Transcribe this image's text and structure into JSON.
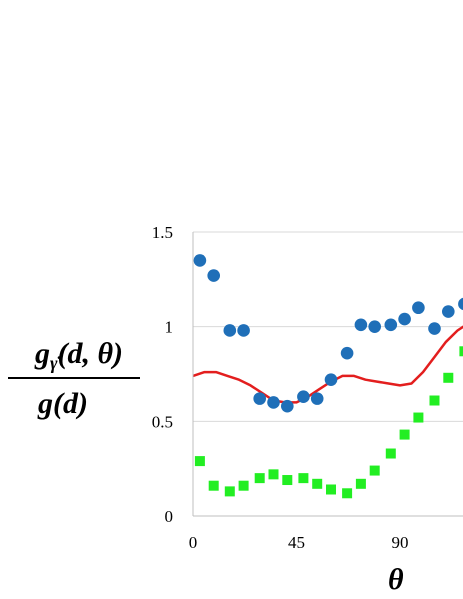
{
  "chart_data": {
    "type": "scatter",
    "title": "",
    "ylabel_numerator": "g",
    "ylabel_numerator_sub": "γ̇",
    "ylabel_numerator_args": "(d, θ)",
    "ylabel_denominator": "g(d)",
    "xlabel": "θ",
    "xlim": [
      0,
      125
    ],
    "ylim": [
      0,
      1.5
    ],
    "x_ticks": [
      0,
      45,
      90
    ],
    "x_tick_labels": [
      "0",
      "45",
      "90"
    ],
    "y_ticks": [
      0,
      0.5,
      1,
      1.5
    ],
    "y_tick_labels": [
      "0",
      "0.5",
      "1",
      "1.5"
    ],
    "grid": "horizontal",
    "legend": "none",
    "series": [
      {
        "marker": "circle",
        "color": "#1f6fb8",
        "x": [
          3,
          9,
          16,
          22,
          29,
          35,
          41,
          48,
          54,
          60,
          67,
          73,
          79,
          86,
          92,
          98,
          105,
          111,
          118
        ],
        "y": [
          1.35,
          1.27,
          0.98,
          0.98,
          0.62,
          0.6,
          0.58,
          0.63,
          0.62,
          0.72,
          0.86,
          1.01,
          1.0,
          1.01,
          1.04,
          1.1,
          0.99,
          1.08,
          1.12
        ]
      },
      {
        "marker": "square",
        "color": "#22ee22",
        "x": [
          3,
          9,
          16,
          22,
          29,
          35,
          41,
          48,
          54,
          60,
          67,
          73,
          79,
          86,
          92,
          98,
          105,
          111,
          118
        ],
        "y": [
          0.29,
          0.16,
          0.13,
          0.16,
          0.2,
          0.22,
          0.19,
          0.2,
          0.17,
          0.14,
          0.12,
          0.17,
          0.24,
          0.33,
          0.43,
          0.52,
          0.61,
          0.73,
          0.87
        ]
      },
      {
        "marker": "line",
        "color": "#e31e1e",
        "x": [
          0,
          5,
          10,
          15,
          20,
          25,
          30,
          35,
          40,
          45,
          50,
          55,
          60,
          65,
          70,
          75,
          80,
          85,
          90,
          95,
          100,
          105,
          110,
          115,
          120,
          125
        ],
        "y": [
          0.74,
          0.76,
          0.76,
          0.74,
          0.72,
          0.69,
          0.65,
          0.61,
          0.6,
          0.6,
          0.63,
          0.67,
          0.71,
          0.74,
          0.74,
          0.72,
          0.71,
          0.7,
          0.69,
          0.7,
          0.76,
          0.84,
          0.92,
          0.98,
          1.02,
          1.05
        ]
      }
    ]
  }
}
